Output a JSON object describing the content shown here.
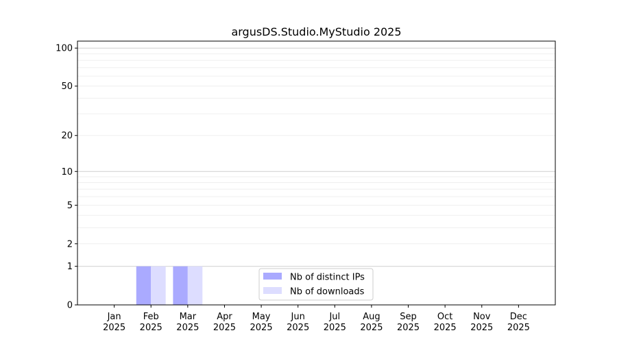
{
  "chart_data": {
    "type": "bar",
    "title": "argusDS.Studio.MyStudio 2025",
    "xlabel": "",
    "ylabel": "",
    "categories": [
      "Jan\n2025",
      "Feb\n2025",
      "Mar\n2025",
      "Apr\n2025",
      "May\n2025",
      "Jun\n2025",
      "Jul\n2025",
      "Aug\n2025",
      "Sep\n2025",
      "Oct\n2025",
      "Nov\n2025",
      "Dec\n2025"
    ],
    "series": [
      {
        "name": "Nb of distinct IPs",
        "color": "#aaaaff",
        "values": [
          0,
          1,
          1,
          0,
          0,
          0,
          0,
          0,
          0,
          0,
          0,
          0
        ]
      },
      {
        "name": "Nb of downloads",
        "color": "#ddddff",
        "values": [
          0,
          1,
          1,
          0,
          0,
          0,
          0,
          0,
          0,
          0,
          0,
          0
        ]
      }
    ],
    "yscale": "log(1+y)",
    "ylim": [
      0,
      113.5
    ],
    "yticks": [
      0,
      1,
      2,
      5,
      10,
      20,
      50,
      100
    ],
    "ytick_labels": [
      "0",
      "1",
      "2",
      "5",
      "10",
      "20",
      "50",
      "100"
    ],
    "grid": true,
    "legend_position": "lower-center"
  }
}
